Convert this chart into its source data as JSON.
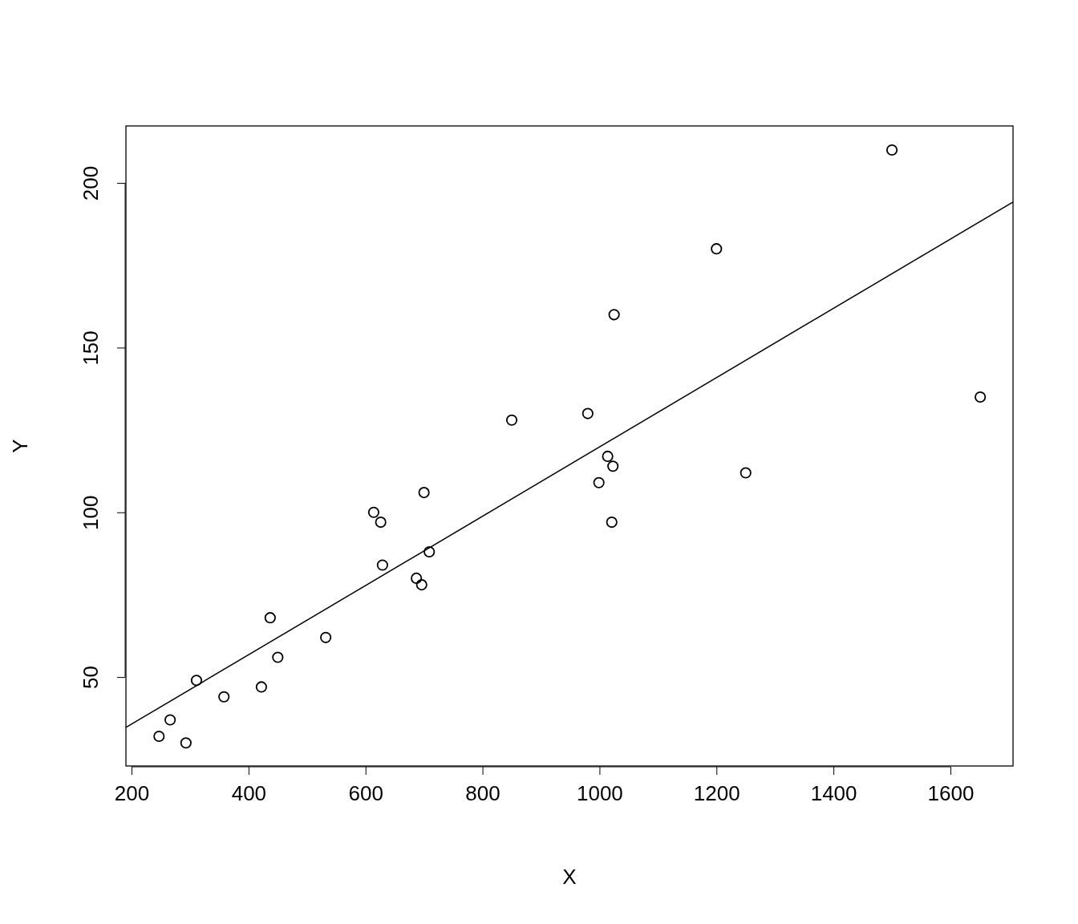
{
  "chart_data": {
    "type": "scatter",
    "xlabel": "X",
    "ylabel": "Y",
    "xlim": [
      190.4,
      1707
    ],
    "ylim": [
      23,
      217.3
    ],
    "xticks": [
      200,
      400,
      600,
      800,
      1000,
      1200,
      1400,
      1600
    ],
    "yticks": [
      50,
      100,
      150,
      200
    ],
    "grid": false,
    "series": [
      {
        "color": "#000000",
        "marker": "circle",
        "x": [
          247,
          266,
          293,
          311,
          358,
          422,
          437,
          450,
          532,
          614,
          626,
          629,
          687,
          696,
          700,
          709,
          850,
          980,
          999,
          1014,
          1021,
          1023,
          1025,
          1200,
          1250,
          1500,
          1651
        ],
        "values": [
          32,
          37,
          30,
          49,
          44,
          47,
          68,
          56,
          62,
          100,
          97,
          84,
          80,
          78,
          106,
          88,
          128,
          130,
          109,
          117,
          97,
          114,
          160,
          180,
          112,
          210,
          135
        ]
      },
      {
        "type": "line",
        "color": "#000000",
        "line_style": "solid",
        "x": [
          190.4,
          1707
        ],
        "values": [
          34.7,
          194.2
        ]
      }
    ]
  }
}
